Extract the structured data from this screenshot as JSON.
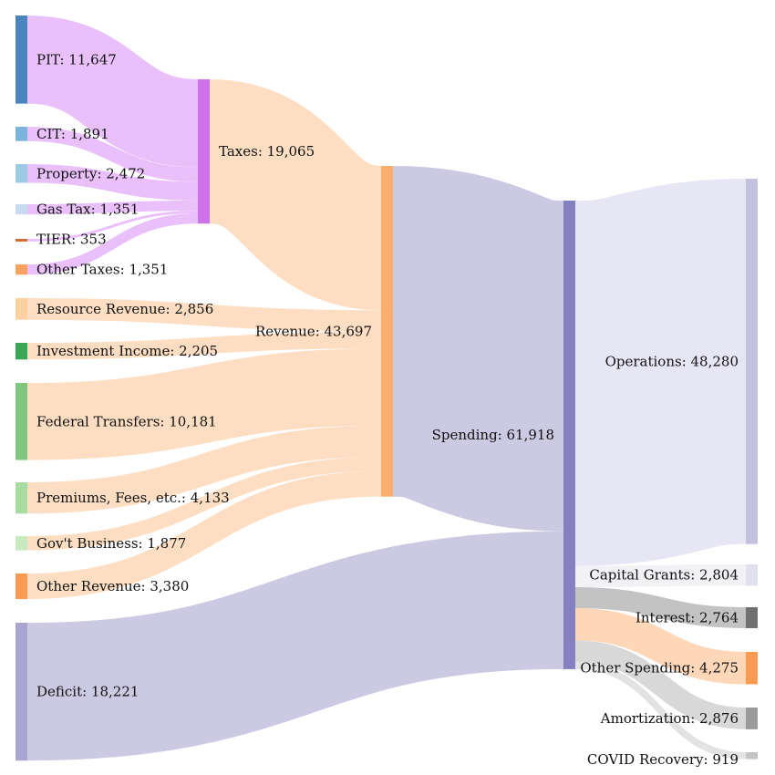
{
  "diagram": {
    "type": "sankey",
    "nodes": [
      {
        "id": "pit",
        "label": "PIT: 11,647",
        "value": 11647,
        "color": "#4a85c0"
      },
      {
        "id": "cit",
        "label": "CIT: 1,891",
        "value": 1891,
        "color": "#7bb5dc"
      },
      {
        "id": "property",
        "label": "Property: 2,472",
        "value": 2472,
        "color": "#9fcae4"
      },
      {
        "id": "gas_tax",
        "label": "Gas Tax: 1,351",
        "value": 1351,
        "color": "#c6dbef"
      },
      {
        "id": "tier",
        "label": "TIER: 353",
        "value": 353,
        "color": "#d46b2c"
      },
      {
        "id": "other_taxes",
        "label": "Other Taxes: 1,351",
        "value": 1351,
        "color": "#f9a15f"
      },
      {
        "id": "resource_revenue",
        "label": "Resource Revenue: 2,856",
        "value": 2856,
        "color": "#fdd0a2"
      },
      {
        "id": "investment_income",
        "label": "Investment Income: 2,205",
        "value": 2205,
        "color": "#3aa657"
      },
      {
        "id": "federal_transfers",
        "label": "Federal Transfers: 10,181",
        "value": 10181,
        "color": "#7fc77e"
      },
      {
        "id": "premiums_fees",
        "label": "Premiums, Fees, etc.: 4,133",
        "value": 4133,
        "color": "#a9dca0"
      },
      {
        "id": "govt_business",
        "label": "Gov't Business: 1,877",
        "value": 1877,
        "color": "#c8eac0"
      },
      {
        "id": "other_revenue",
        "label": "Other Revenue: 3,380",
        "value": 3380,
        "color": "#f99a52"
      },
      {
        "id": "deficit",
        "label": "Deficit: 18,221",
        "value": 18221,
        "color": "#aba5d1"
      },
      {
        "id": "taxes",
        "label": "Taxes: 19,065",
        "value": 19065,
        "color": "#cd73ea"
      },
      {
        "id": "revenue",
        "label": "Revenue: 43,697",
        "value": 43697,
        "color": "#fbae6b"
      },
      {
        "id": "spending",
        "label": "Spending: 61,918",
        "value": 61918,
        "color": "#8580c0"
      },
      {
        "id": "operations",
        "label": "Operations: 48,280",
        "value": 48280,
        "color": "#c4c2e0"
      },
      {
        "id": "capital_grants",
        "label": "Capital Grants: 2,804",
        "value": 2804,
        "color": "#e0e0ee"
      },
      {
        "id": "interest",
        "label": "Interest: 2,764",
        "value": 2764,
        "color": "#707070"
      },
      {
        "id": "other_spending",
        "label": "Other Spending: 4,275",
        "value": 4275,
        "color": "#fb9a52"
      },
      {
        "id": "amortization",
        "label": "Amortization: 2,876",
        "value": 2876,
        "color": "#9a9a9a"
      },
      {
        "id": "covid_recovery",
        "label": "COVID Recovery: 919",
        "value": 919,
        "color": "#c4c4c4"
      }
    ],
    "links": [
      {
        "source": "pit",
        "target": "taxes",
        "value": 11647,
        "color": "#e9bdfb"
      },
      {
        "source": "cit",
        "target": "taxes",
        "value": 1891,
        "color": "#e9bdfb"
      },
      {
        "source": "property",
        "target": "taxes",
        "value": 2472,
        "color": "#e9bdfb"
      },
      {
        "source": "gas_tax",
        "target": "taxes",
        "value": 1351,
        "color": "#e9bdfb"
      },
      {
        "source": "tier",
        "target": "taxes",
        "value": 353,
        "color": "#e9bdfb"
      },
      {
        "source": "other_taxes",
        "target": "taxes",
        "value": 1351,
        "color": "#e9bdfb"
      },
      {
        "source": "taxes",
        "target": "revenue",
        "value": 19065,
        "color": "#fddcbf"
      },
      {
        "source": "resource_revenue",
        "target": "revenue",
        "value": 2856,
        "color": "#fddcbf"
      },
      {
        "source": "investment_income",
        "target": "revenue",
        "value": 2205,
        "color": "#fddcbf"
      },
      {
        "source": "federal_transfers",
        "target": "revenue",
        "value": 10181,
        "color": "#fddcbf"
      },
      {
        "source": "premiums_fees",
        "target": "revenue",
        "value": 4133,
        "color": "#fddcbf"
      },
      {
        "source": "govt_business",
        "target": "revenue",
        "value": 1877,
        "color": "#fddcbf"
      },
      {
        "source": "other_revenue",
        "target": "revenue",
        "value": 3380,
        "color": "#fddcbf"
      },
      {
        "source": "revenue",
        "target": "spending",
        "value": 43697,
        "color": "#c9c6e2"
      },
      {
        "source": "deficit",
        "target": "spending",
        "value": 18221,
        "color": "#c9c6e2"
      },
      {
        "source": "spending",
        "target": "operations",
        "value": 48280,
        "color": "#e6e5f3"
      },
      {
        "source": "spending",
        "target": "capital_grants",
        "value": 2804,
        "color": "#f0f0f6"
      },
      {
        "source": "spending",
        "target": "interest",
        "value": 2764,
        "color": "#c0c0c0"
      },
      {
        "source": "spending",
        "target": "other_spending",
        "value": 4275,
        "color": "#fdd5b4"
      },
      {
        "source": "spending",
        "target": "amortization",
        "value": 2876,
        "color": "#d6d6d6"
      },
      {
        "source": "spending",
        "target": "covid_recovery",
        "value": 919,
        "color": "#e2e2e2"
      }
    ]
  }
}
